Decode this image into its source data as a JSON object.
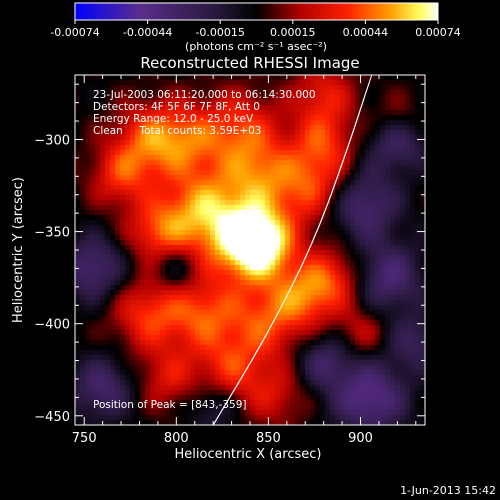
{
  "chart_data": {
    "type": "heatmap",
    "title": "Reconstructed RHESSI Image",
    "xlabel": "Heliocentric X (arcsec)",
    "ylabel": "Heliocentric Y (arcsec)",
    "xlim": [
      745,
      935
    ],
    "ylim": [
      -455,
      -265
    ],
    "x_ticks": [
      750,
      800,
      850,
      900
    ],
    "y_ticks": [
      -450,
      -400,
      -350,
      -300
    ],
    "colorbar": {
      "ticks": [
        "-0.00074",
        "-0.00044",
        "-0.00015",
        "0.00015",
        "0.00044",
        "0.00074"
      ],
      "unit_label": "(photons cm⁻² s⁻¹ asec⁻²)",
      "range": [
        -0.00074,
        0.00074
      ],
      "colors": [
        "#0000ff",
        "#5a2d8a",
        "#2a1a40",
        "#000000",
        "#b00000",
        "#ff2000",
        "#ffa000",
        "#ffff60",
        "#ffffff"
      ]
    },
    "annotations": [
      "23-Jul-2003 06:11:20.000 to 06:14:30.000",
      "Detectors: 4F 5F 6F 7F 8F, Att 0",
      "Energy Range: 12.0 - 25.0 keV",
      "Clean     Total counts: 3.59E+03"
    ],
    "peak_label": "Position of Peak = [843,-359]",
    "peak": [
      843,
      -359
    ],
    "limb_curve": [
      [
        820,
        -455
      ],
      [
        850,
        -405
      ],
      [
        875,
        -355
      ],
      [
        893,
        -305
      ],
      [
        906,
        -265
      ]
    ],
    "blobs": [
      {
        "x": 845,
        "y": -357,
        "amp": 1.0,
        "s": 13
      },
      {
        "x": 828,
        "y": -350,
        "amp": 0.55,
        "s": 18
      },
      {
        "x": 812,
        "y": -335,
        "amp": 0.45,
        "s": 15
      },
      {
        "x": 845,
        "y": -320,
        "amp": 0.45,
        "s": 14
      },
      {
        "x": 835,
        "y": -295,
        "amp": 0.5,
        "s": 15
      },
      {
        "x": 805,
        "y": -300,
        "amp": 0.45,
        "s": 14
      },
      {
        "x": 875,
        "y": -325,
        "amp": 0.55,
        "s": 15
      },
      {
        "x": 880,
        "y": -300,
        "amp": 0.4,
        "s": 12
      },
      {
        "x": 880,
        "y": -275,
        "amp": 0.4,
        "s": 12
      },
      {
        "x": 785,
        "y": -300,
        "amp": 0.5,
        "s": 14
      },
      {
        "x": 770,
        "y": -320,
        "amp": 0.45,
        "s": 12
      },
      {
        "x": 790,
        "y": -350,
        "amp": 0.5,
        "s": 12
      },
      {
        "x": 785,
        "y": -395,
        "amp": 0.5,
        "s": 14
      },
      {
        "x": 815,
        "y": -395,
        "amp": 0.5,
        "s": 14
      },
      {
        "x": 850,
        "y": -398,
        "amp": 0.5,
        "s": 15
      },
      {
        "x": 870,
        "y": -385,
        "amp": 0.45,
        "s": 12
      },
      {
        "x": 885,
        "y": -375,
        "amp": 0.45,
        "s": 12
      },
      {
        "x": 830,
        "y": -425,
        "amp": 0.45,
        "s": 14
      },
      {
        "x": 795,
        "y": -430,
        "amp": 0.35,
        "s": 12
      },
      {
        "x": 855,
        "y": -440,
        "amp": 0.3,
        "s": 12
      },
      {
        "x": 900,
        "y": -405,
        "amp": 0.3,
        "s": 10
      },
      {
        "x": 920,
        "y": -290,
        "amp": 0.3,
        "s": 10
      },
      {
        "x": 755,
        "y": -370,
        "amp": -0.5,
        "s": 12
      },
      {
        "x": 760,
        "y": -435,
        "amp": -0.45,
        "s": 12
      },
      {
        "x": 900,
        "y": -335,
        "amp": -0.55,
        "s": 14
      },
      {
        "x": 915,
        "y": -375,
        "amp": -0.5,
        "s": 13
      },
      {
        "x": 905,
        "y": -440,
        "amp": -0.6,
        "s": 14
      },
      {
        "x": 880,
        "y": -420,
        "amp": -0.4,
        "s": 11
      },
      {
        "x": 920,
        "y": -300,
        "amp": -0.5,
        "s": 11
      },
      {
        "x": 930,
        "y": -410,
        "amp": -0.35,
        "s": 10
      },
      {
        "x": 820,
        "y": -445,
        "amp": -0.3,
        "s": 10
      },
      {
        "x": 800,
        "y": -370,
        "amp": -0.3,
        "s": 9
      }
    ]
  },
  "timestamp": "1-Jun-2013 15:42"
}
